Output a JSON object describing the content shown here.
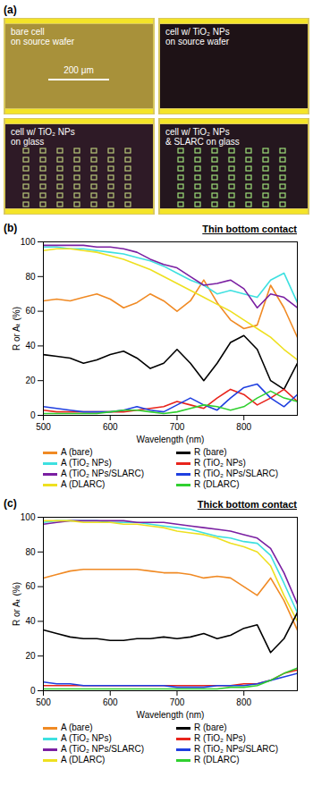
{
  "panel_a": {
    "panel": "(a)",
    "scale_bar": "200 μm",
    "images": [
      {
        "caption": [
          "bare cell",
          "on source wafer"
        ]
      },
      {
        "caption": [
          "cell w/ TiO₂ NPs",
          "on source wafer"
        ]
      },
      {
        "caption": [
          "cell w/ TiO₂ NPs",
          "on glass"
        ]
      },
      {
        "caption": [
          "cell w/ TiO₂ NPs",
          "& SLARC on glass"
        ]
      }
    ]
  },
  "chart_data": [
    {
      "type": "line",
      "panel": "(b)",
      "title": "Thin bottom contact",
      "x_label": "Wavelength (nm)",
      "y_label": "R or Aₜ (%)",
      "x": [
        500,
        520,
        540,
        560,
        580,
        600,
        620,
        640,
        660,
        680,
        700,
        720,
        740,
        760,
        780,
        800,
        820,
        840,
        860,
        880
      ],
      "xlim": [
        500,
        880
      ],
      "xticks": [
        500,
        600,
        700,
        800
      ],
      "ylim": [
        0,
        100
      ],
      "yticks": [
        0,
        20,
        40,
        60,
        80,
        100
      ],
      "legend": "bottom",
      "series": [
        {
          "name": "A (bare)",
          "color": "#f08a24",
          "values": [
            66,
            67,
            66,
            68,
            70,
            67,
            62,
            65,
            70,
            66,
            60,
            66,
            78,
            65,
            55,
            50,
            52,
            75,
            62,
            45
          ]
        },
        {
          "name": "A (TiO₂ NPs)",
          "color": "#3ee0e0",
          "values": [
            97,
            97,
            96,
            96,
            95,
            94,
            93,
            91,
            89,
            86,
            82,
            78,
            75,
            70,
            72,
            70,
            68,
            78,
            82,
            65
          ]
        },
        {
          "name": "A (TiO₂ NPs/SLARC)",
          "color": "#7a1fa2",
          "values": [
            98,
            98,
            98,
            98,
            97,
            97,
            96,
            94,
            90,
            87,
            85,
            80,
            75,
            76,
            78,
            73,
            62,
            70,
            68,
            62
          ]
        },
        {
          "name": "A (DLARC)",
          "color": "#eee020",
          "values": [
            95,
            96,
            96,
            95,
            94,
            92,
            90,
            87,
            84,
            80,
            76,
            72,
            68,
            64,
            60,
            55,
            50,
            45,
            38,
            32
          ]
        },
        {
          "name": "R (bare)",
          "color": "#000000",
          "values": [
            35,
            34,
            33,
            30,
            32,
            35,
            37,
            33,
            27,
            30,
            38,
            30,
            20,
            30,
            42,
            46,
            38,
            20,
            15,
            30
          ]
        },
        {
          "name": "R (TiO₂ NPs)",
          "color": "#e8241c",
          "values": [
            3,
            2,
            2,
            2,
            2,
            2,
            2,
            3,
            4,
            5,
            8,
            6,
            4,
            10,
            15,
            12,
            6,
            10,
            15,
            8
          ]
        },
        {
          "name": "R (TiO₂ NPs/SLARC)",
          "color": "#1f3fe0",
          "values": [
            5,
            4,
            3,
            2,
            2,
            2,
            3,
            5,
            3,
            2,
            6,
            10,
            6,
            3,
            10,
            16,
            18,
            10,
            5,
            12
          ]
        },
        {
          "name": "R (DLARC)",
          "color": "#30d030",
          "values": [
            1,
            1,
            1,
            1,
            1,
            2,
            3,
            3,
            2,
            1,
            2,
            4,
            6,
            5,
            3,
            5,
            10,
            14,
            10,
            8
          ]
        }
      ]
    },
    {
      "type": "line",
      "panel": "(c)",
      "title": "Thick bottom contact",
      "x_label": "Wavelength (nm)",
      "y_label": "R or Aₜ (%)",
      "x": [
        500,
        520,
        540,
        560,
        580,
        600,
        620,
        640,
        660,
        680,
        700,
        720,
        740,
        760,
        780,
        800,
        820,
        840,
        860,
        880
      ],
      "xlim": [
        500,
        880
      ],
      "xticks": [
        500,
        600,
        700,
        800
      ],
      "ylim": [
        0,
        100
      ],
      "yticks": [
        0,
        20,
        40,
        60,
        80,
        100
      ],
      "legend": "bottom",
      "series": [
        {
          "name": "A (bare)",
          "color": "#f08a24",
          "values": [
            65,
            67,
            69,
            70,
            70,
            70,
            70,
            70,
            69,
            68,
            68,
            67,
            65,
            66,
            65,
            60,
            55,
            65,
            52,
            35
          ]
        },
        {
          "name": "A (TiO₂ NPs)",
          "color": "#3ee0e0",
          "values": [
            97,
            98,
            98,
            98,
            98,
            97,
            97,
            97,
            96,
            95,
            94,
            93,
            91,
            89,
            88,
            86,
            85,
            78,
            62,
            45
          ]
        },
        {
          "name": "A (TiO₂ NPs/SLARC)",
          "color": "#7a1fa2",
          "values": [
            96,
            97,
            98,
            98,
            98,
            98,
            98,
            97,
            97,
            97,
            96,
            95,
            94,
            93,
            92,
            90,
            88,
            82,
            68,
            50
          ]
        },
        {
          "name": "A (DLARC)",
          "color": "#eee020",
          "values": [
            98,
            98,
            98,
            97,
            97,
            97,
            96,
            96,
            95,
            94,
            92,
            91,
            90,
            88,
            85,
            83,
            80,
            72,
            55,
            40
          ]
        },
        {
          "name": "R (bare)",
          "color": "#000000",
          "values": [
            35,
            33,
            31,
            30,
            30,
            29,
            29,
            30,
            30,
            31,
            30,
            31,
            33,
            30,
            32,
            36,
            38,
            22,
            30,
            45
          ]
        },
        {
          "name": "R (TiO₂ NPs)",
          "color": "#e8241c",
          "values": [
            3,
            3,
            3,
            3,
            3,
            3,
            3,
            3,
            3,
            3,
            3,
            3,
            3,
            3,
            3,
            4,
            4,
            6,
            10,
            12
          ]
        },
        {
          "name": "R (TiO₂ NPs/SLARC)",
          "color": "#1f3fe0",
          "values": [
            5,
            4,
            4,
            3,
            3,
            3,
            3,
            3,
            3,
            3,
            2,
            2,
            2,
            3,
            3,
            3,
            4,
            6,
            8,
            10
          ]
        },
        {
          "name": "R (DLARC)",
          "color": "#30d030",
          "values": [
            1,
            1,
            1,
            1,
            1,
            1,
            1,
            1,
            1,
            1,
            1,
            1,
            1,
            1,
            2,
            2,
            3,
            6,
            10,
            13
          ]
        }
      ]
    }
  ]
}
